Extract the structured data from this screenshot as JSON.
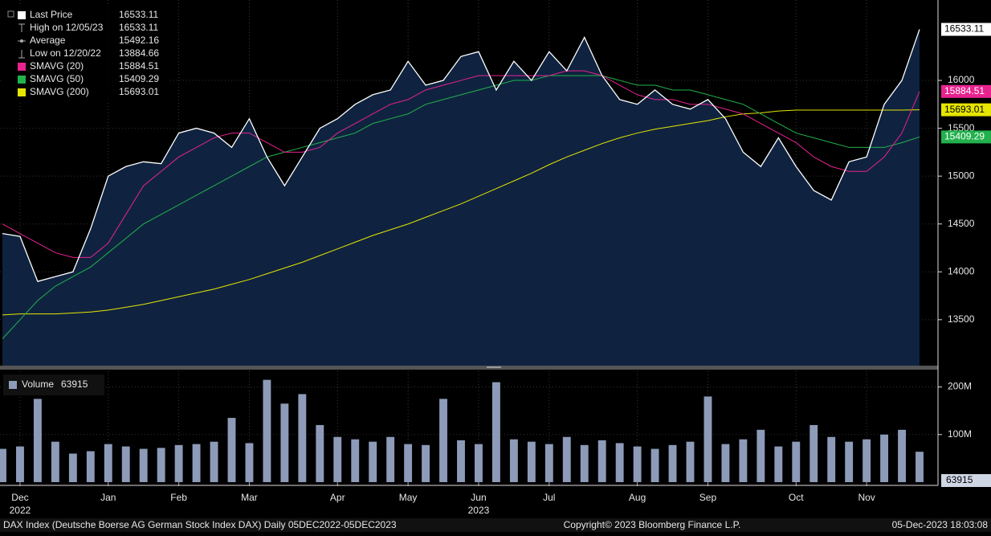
{
  "chart_data": [
    {
      "type": "line",
      "categories": [
        null,
        "Dec",
        null,
        null,
        null,
        null,
        "Jan",
        null,
        null,
        null,
        "Feb",
        null,
        null,
        null,
        "Mar",
        null,
        null,
        null,
        null,
        "Apr",
        null,
        null,
        null,
        "May",
        null,
        null,
        null,
        "Jun",
        null,
        null,
        null,
        "Jul",
        null,
        null,
        null,
        null,
        "Aug",
        null,
        null,
        null,
        "Sep",
        null,
        null,
        null,
        null,
        "Oct",
        null,
        null,
        null,
        "Nov",
        null,
        null,
        null
      ],
      "year_categories": [
        null,
        "2022",
        null,
        null,
        null,
        null,
        null,
        null,
        null,
        null,
        null,
        null,
        null,
        null,
        null,
        null,
        null,
        null,
        null,
        null,
        null,
        null,
        null,
        null,
        null,
        null,
        null,
        "2023",
        null,
        null,
        null,
        null,
        null,
        null,
        null,
        null,
        null,
        null,
        null,
        null,
        null,
        null,
        null,
        null,
        null,
        null,
        null,
        null,
        null,
        null,
        null,
        null,
        null
      ],
      "series": [
        {
          "name": "Last Price",
          "color": "#ffffff",
          "area_color": "#0f2340",
          "values": [
            14400,
            14370,
            13900,
            13950,
            14000,
            14450,
            15000,
            15100,
            15150,
            15130,
            15450,
            15500,
            15450,
            15300,
            15600,
            15200,
            14900,
            15200,
            15500,
            15600,
            15750,
            15850,
            15900,
            16200,
            15950,
            16000,
            16250,
            16300,
            15900,
            16200,
            16000,
            16300,
            16100,
            16450,
            16050,
            15800,
            15750,
            15900,
            15750,
            15700,
            15800,
            15600,
            15250,
            15100,
            15400,
            15100,
            14850,
            14750,
            15150,
            15200,
            15750,
            16000,
            16533.11
          ]
        },
        {
          "name": "SMAVG (20)",
          "color": "#e8238f",
          "values": [
            14500,
            14400,
            14300,
            14200,
            14150,
            14150,
            14300,
            14600,
            14900,
            15050,
            15200,
            15300,
            15400,
            15450,
            15450,
            15350,
            15250,
            15250,
            15300,
            15450,
            15550,
            15650,
            15750,
            15800,
            15900,
            15950,
            16000,
            16050,
            16050,
            16050,
            16050,
            16050,
            16100,
            16100,
            16050,
            15950,
            15850,
            15800,
            15800,
            15750,
            15750,
            15700,
            15650,
            15550,
            15450,
            15350,
            15200,
            15100,
            15050,
            15050,
            15200,
            15450,
            15884.51
          ]
        },
        {
          "name": "SMAVG (50)",
          "color": "#22b14c",
          "values": [
            13300,
            13500,
            13700,
            13850,
            13950,
            14050,
            14200,
            14350,
            14500,
            14600,
            14700,
            14800,
            14900,
            15000,
            15100,
            15200,
            15250,
            15300,
            15350,
            15400,
            15450,
            15550,
            15600,
            15650,
            15750,
            15800,
            15850,
            15900,
            15950,
            16000,
            16000,
            16050,
            16050,
            16050,
            16050,
            16000,
            15950,
            15950,
            15900,
            15900,
            15850,
            15800,
            15750,
            15650,
            15550,
            15450,
            15400,
            15350,
            15300,
            15300,
            15300,
            15350,
            15409.29
          ]
        },
        {
          "name": "SMAVG (200)",
          "color": "#e6e600",
          "values": [
            13550,
            13560,
            13560,
            13560,
            13570,
            13580,
            13600,
            13630,
            13660,
            13700,
            13740,
            13780,
            13820,
            13870,
            13920,
            13980,
            14040,
            14100,
            14170,
            14240,
            14310,
            14380,
            14440,
            14500,
            14570,
            14640,
            14710,
            14790,
            14870,
            14950,
            15030,
            15120,
            15200,
            15270,
            15340,
            15400,
            15450,
            15490,
            15520,
            15550,
            15580,
            15620,
            15650,
            15660,
            15680,
            15690,
            15690,
            15690,
            15690,
            15690,
            15690,
            15690,
            15693.01
          ]
        }
      ],
      "stats": [
        {
          "label": "High on 12/05/23",
          "value": 16533.11
        },
        {
          "label": "Average",
          "value": 15492.16
        },
        {
          "label": "Low on 12/20/22",
          "value": 13884.66
        }
      ],
      "ylim": [
        13020,
        16840
      ],
      "yticks": [
        13500,
        14000,
        14500,
        15000,
        15500,
        16000
      ],
      "grid": true
    },
    {
      "type": "bar",
      "series": [
        {
          "name": "Volume",
          "color": "#8d9bb8",
          "values": [
            70,
            75,
            175,
            85,
            60,
            65,
            80,
            75,
            70,
            72,
            78,
            80,
            85,
            135,
            82,
            215,
            165,
            185,
            120,
            95,
            90,
            85,
            95,
            80,
            78,
            175,
            88,
            80,
            210,
            90,
            85,
            80,
            95,
            78,
            88,
            82,
            75,
            70,
            78,
            85,
            180,
            80,
            90,
            110,
            75,
            85,
            120,
            95,
            85,
            90,
            100,
            110,
            63.915
          ]
        }
      ],
      "last_label": "63915",
      "ylim": [
        0,
        233
      ],
      "yticks": [
        {
          "value": 100,
          "label": "100M"
        },
        {
          "value": 200,
          "label": "200M"
        }
      ],
      "grid": true
    }
  ],
  "footer": {
    "left": "DAX Index (Deutsche Boerse AG German Stock Index DAX)  Daily 05DEC2022-05DEC2023",
    "center": "Copyright© 2023 Bloomberg Finance L.P.",
    "right": "05-Dec-2023 18:03:08"
  }
}
